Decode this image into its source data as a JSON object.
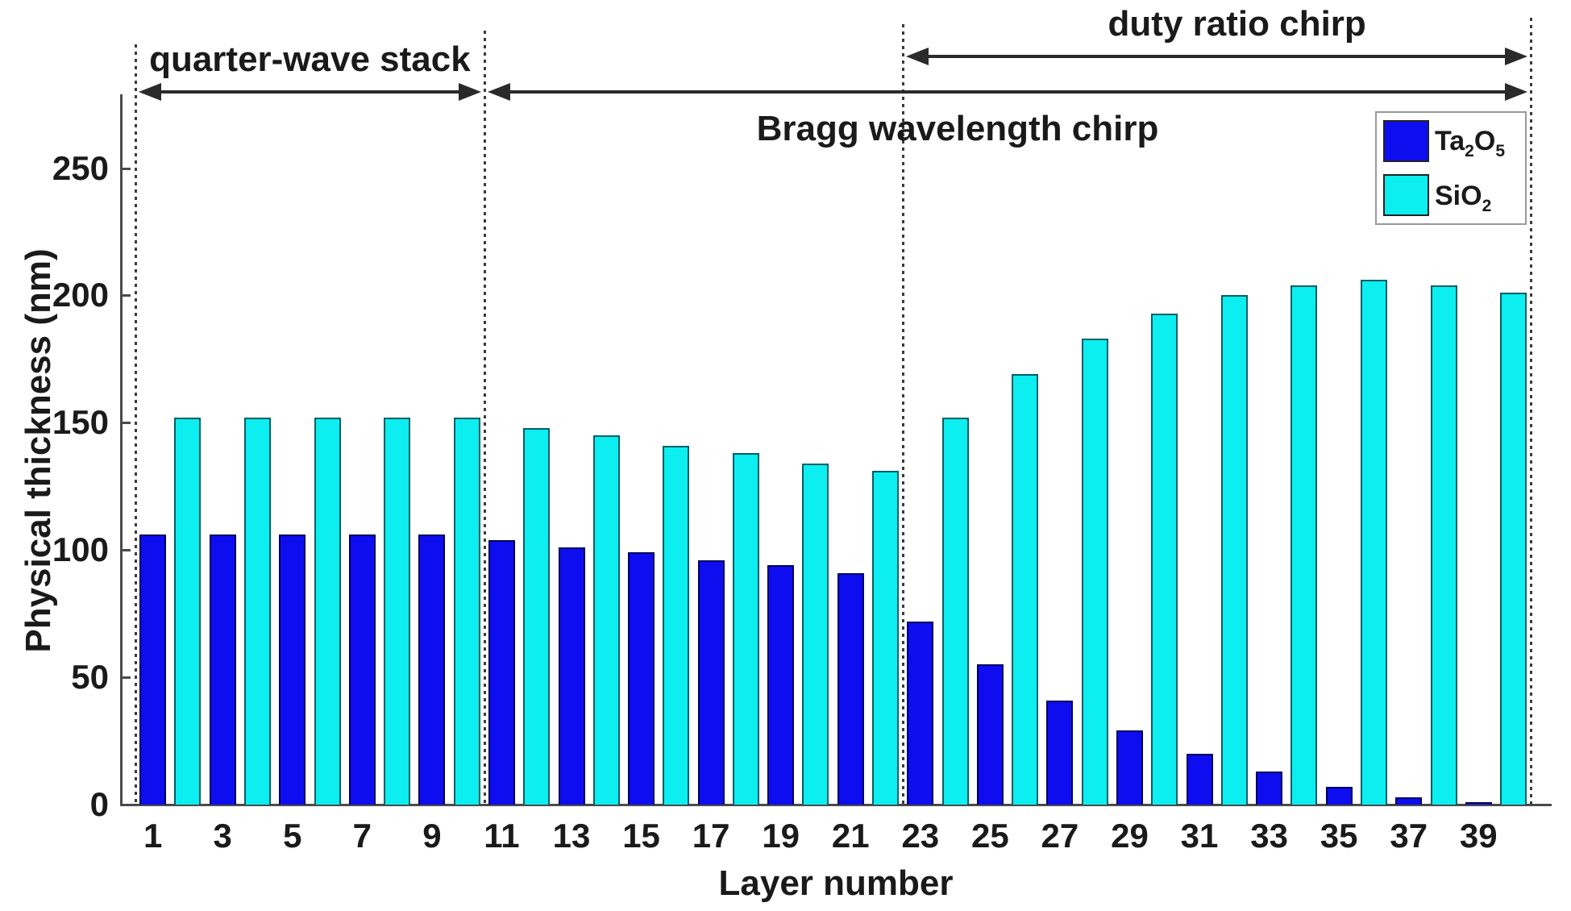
{
  "chart_data": {
    "type": "bar",
    "title": "",
    "xlabel": "Layer number",
    "ylabel": "Physical thickness (nm)",
    "ylim": [
      0,
      280
    ],
    "yticks": [
      0,
      50,
      100,
      150,
      200,
      250
    ],
    "xtick_labels": [
      "1",
      "3",
      "5",
      "7",
      "9",
      "11",
      "13",
      "15",
      "17",
      "19",
      "21",
      "23",
      "25",
      "27",
      "29",
      "31",
      "33",
      "35",
      "37",
      "39"
    ],
    "grid": false,
    "legend_position": "upper right",
    "series": [
      {
        "name": "Ta2O5",
        "color": "#0d0df0",
        "edge_color": "#000060",
        "layers": [
          1,
          3,
          5,
          7,
          9,
          11,
          13,
          15,
          17,
          19,
          21,
          23,
          25,
          27,
          29,
          31,
          33,
          35,
          37,
          39
        ],
        "values": [
          106,
          106,
          106,
          106,
          106,
          104,
          101,
          99,
          96,
          94,
          91,
          72,
          55,
          41,
          29,
          20,
          13,
          7,
          3,
          1
        ]
      },
      {
        "name": "SiO2",
        "color": "#0ceef0",
        "edge_color": "#006066",
        "layers": [
          2,
          4,
          6,
          8,
          10,
          12,
          14,
          16,
          18,
          20,
          22,
          24,
          26,
          28,
          30,
          32,
          34,
          36,
          38,
          40
        ],
        "values": [
          152,
          152,
          152,
          152,
          152,
          148,
          145,
          141,
          138,
          134,
          131,
          152,
          169,
          183,
          193,
          200,
          204,
          206,
          204,
          201
        ]
      }
    ],
    "annotations": [
      {
        "label": "quarter-wave stack",
        "from_layer": 1,
        "to_layer": 10,
        "arrow_y": 114,
        "label_side": "above",
        "label_dx": 0
      },
      {
        "label": "Bragg wavelength chirp",
        "from_layer": 11,
        "to_layer": 40,
        "arrow_y": 114,
        "label_side": "below",
        "label_dx": -62
      },
      {
        "label": "duty ratio chirp",
        "from_layer": 23,
        "to_layer": 40,
        "arrow_y": 70,
        "label_side": "above",
        "label_dx": 25
      }
    ],
    "dividers": [
      {
        "at_boundary": 0.5,
        "top": 55
      },
      {
        "at_boundary": 10.5,
        "top": 38
      },
      {
        "at_boundary": 22.5,
        "top": 30
      },
      {
        "at_boundary": 40.5,
        "top": 22
      }
    ],
    "legend": [
      {
        "formula": "Ta2O5",
        "color": "#0d0df0"
      },
      {
        "formula": "SiO2",
        "color": "#0ceef0"
      }
    ]
  }
}
